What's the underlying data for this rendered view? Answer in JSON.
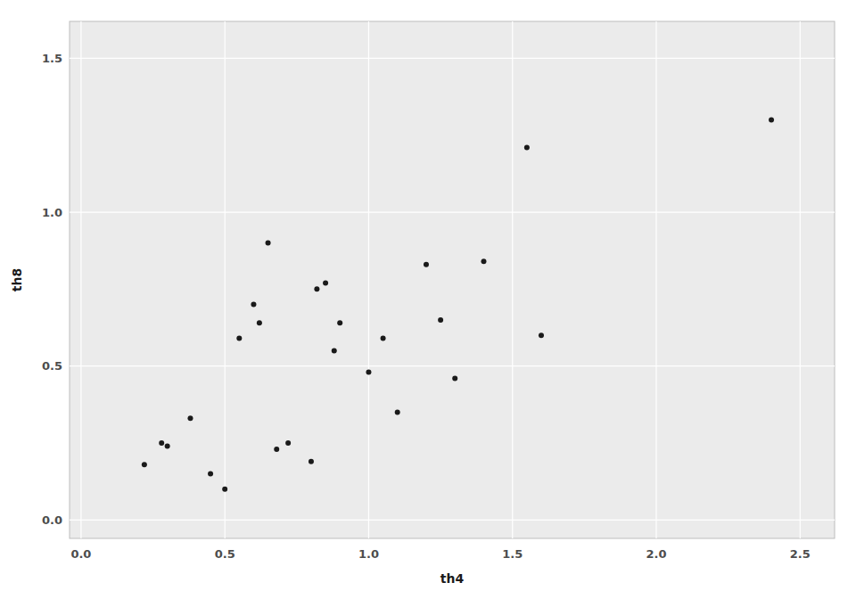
{
  "chart_data": {
    "type": "scatter",
    "x": [
      0.22,
      0.28,
      0.3,
      0.38,
      0.45,
      0.5,
      0.55,
      0.6,
      0.62,
      0.65,
      0.68,
      0.72,
      0.8,
      0.82,
      0.85,
      0.88,
      0.9,
      1.0,
      1.05,
      1.1,
      1.2,
      1.25,
      1.3,
      1.4,
      1.55,
      1.6,
      2.4
    ],
    "y": [
      0.18,
      0.25,
      0.24,
      0.33,
      0.15,
      0.1,
      0.59,
      0.7,
      0.64,
      0.9,
      0.23,
      0.25,
      0.19,
      0.75,
      0.77,
      0.55,
      0.64,
      0.48,
      0.59,
      0.35,
      0.83,
      0.65,
      0.46,
      0.84,
      1.21,
      0.6,
      1.3
    ],
    "x_label": "th4",
    "y_label": "th8",
    "xlim": [
      -0.04,
      2.62
    ],
    "ylim": [
      -0.06,
      1.62
    ],
    "xticks": [
      {
        "value": 0.0,
        "label": "0.0"
      },
      0.5,
      {
        "value": 1.0,
        "label": "1.0"
      },
      1.5,
      {
        "value": 2.0,
        "label": "2.0"
      },
      2.5
    ],
    "yticks": [
      {
        "value": 0.0,
        "label": "0.0"
      },
      0.5,
      {
        "value": 1.0,
        "label": "1.0"
      },
      1.5
    ],
    "color": "#1a1a1a",
    "grid": true
  }
}
